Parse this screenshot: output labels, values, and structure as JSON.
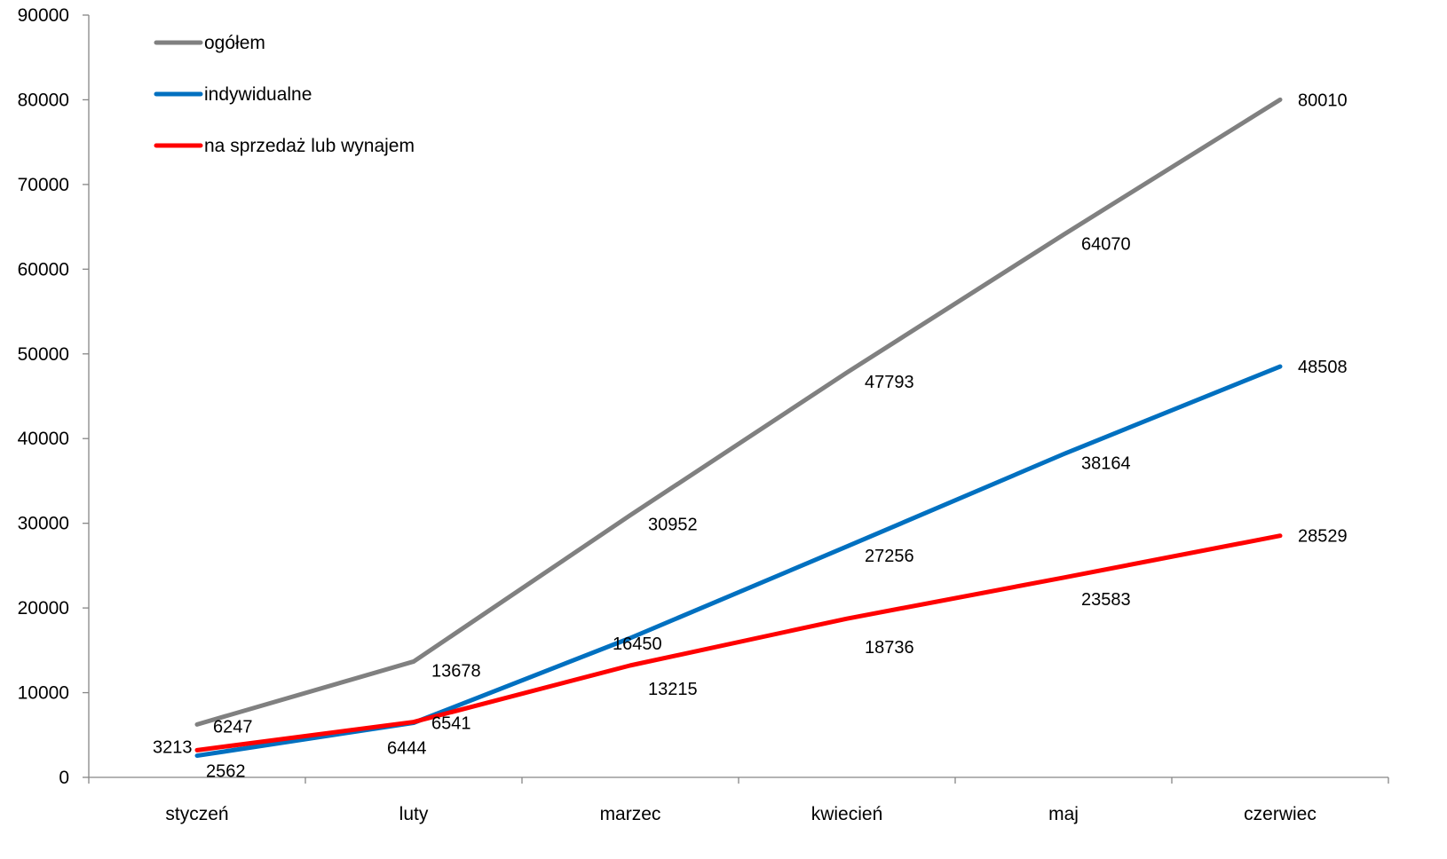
{
  "chart_data": {
    "type": "line",
    "title": "",
    "xlabel": "",
    "ylabel": "",
    "categories": [
      "styczeń",
      "luty",
      "marzec",
      "kwiecień",
      "maj",
      "czerwiec"
    ],
    "ylim": [
      0,
      90000
    ],
    "yticks": [
      "0",
      "10000",
      "20000",
      "30000",
      "40000",
      "50000",
      "60000",
      "70000",
      "80000",
      "90000"
    ],
    "grid": false,
    "legend_position": "top-left",
    "series": [
      {
        "name": "ogółem",
        "color": "#808080",
        "values": [
          6247,
          13678,
          30952,
          47793,
          64070,
          80010
        ]
      },
      {
        "name": "indywidualne",
        "color": "#0070C0",
        "values": [
          2562,
          6444,
          16450,
          27256,
          38164,
          48508
        ]
      },
      {
        "name": "na sprzedaż lub wynajem",
        "color": "#FF0000",
        "values": [
          3213,
          6541,
          13215,
          18736,
          23583,
          28529
        ]
      }
    ]
  }
}
